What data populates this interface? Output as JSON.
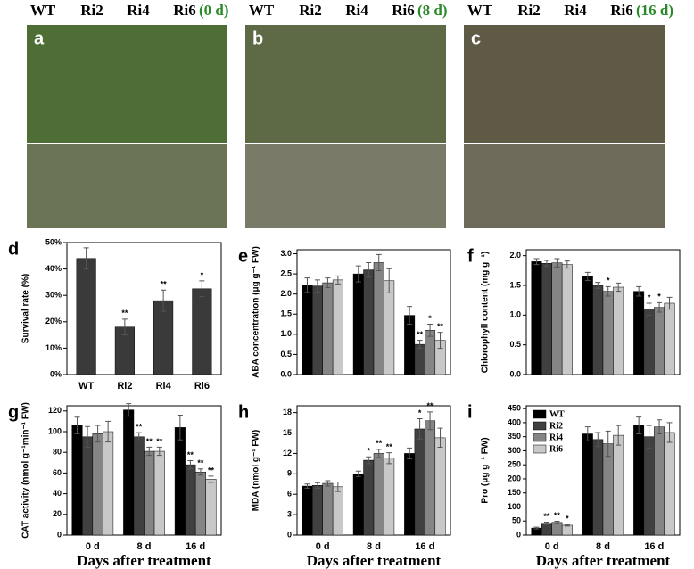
{
  "photos": [
    {
      "panel": "a",
      "headers": [
        "WT",
        "Ri2",
        "Ri4",
        "Ri6"
      ],
      "day": "(0 d)"
    },
    {
      "panel": "b",
      "headers": [
        "WT",
        "Ri2",
        "Ri4",
        "Ri6"
      ],
      "day": "(8 d)"
    },
    {
      "panel": "c",
      "headers": [
        "WT",
        "Ri2",
        "Ri4",
        "Ri6"
      ],
      "day": "(16 d)"
    }
  ],
  "chart_data": [
    {
      "type": "bar",
      "panel": "d",
      "ylabel": "Survival rate (%)",
      "categories": [
        "WT",
        "Ri2",
        "Ri4",
        "Ri6"
      ],
      "values": [
        44,
        18,
        28,
        32.5
      ],
      "errors": [
        4,
        3,
        4,
        3
      ],
      "annotations": [
        null,
        "**",
        "**",
        "*"
      ],
      "color": "#3a3a3a",
      "ylim": [
        0,
        50
      ],
      "yticks": [
        {
          "value": 0,
          "label": "0%"
        },
        {
          "value": 10,
          "label": "10%"
        },
        {
          "value": 20,
          "label": "20%"
        },
        {
          "value": 30,
          "label": "30%"
        },
        {
          "value": 40,
          "label": "40%"
        },
        {
          "value": 50,
          "label": "50%"
        }
      ]
    },
    {
      "type": "bar",
      "panel": "e",
      "ylabel": "ABA concentration (μg g⁻¹ FW)",
      "series": [
        {
          "color": "#000000",
          "values": [
            2.22,
            2.5,
            1.47
          ],
          "errors": [
            0.18,
            0.2,
            0.22
          ],
          "annotations": [
            null,
            null,
            null
          ]
        },
        {
          "color": "#404040",
          "values": [
            2.2,
            2.6,
            0.75
          ],
          "errors": [
            0.15,
            0.18,
            0.1
          ],
          "annotations": [
            null,
            null,
            "**"
          ]
        },
        {
          "color": "#858585",
          "values": [
            2.28,
            2.78,
            1.1
          ],
          "errors": [
            0.12,
            0.2,
            0.15
          ],
          "annotations": [
            null,
            null,
            "*"
          ]
        },
        {
          "color": "#c8c8c8",
          "values": [
            2.35,
            2.33,
            0.85
          ],
          "errors": [
            0.1,
            0.3,
            0.2
          ],
          "annotations": [
            null,
            null,
            "**"
          ]
        }
      ],
      "ylim": [
        0,
        3.1
      ],
      "yticks": [
        {
          "value": 0,
          "label": "0.0"
        },
        0.5,
        {
          "value": 1,
          "label": "1.0"
        },
        1.5,
        {
          "value": 2,
          "label": "2.0"
        },
        2.5,
        {
          "value": 3,
          "label": "3.0"
        }
      ]
    },
    {
      "type": "bar",
      "panel": "f",
      "ylabel": "Chlorophyll content (mg g⁻¹)",
      "series": [
        {
          "color": "#000000",
          "values": [
            1.9,
            1.65,
            1.4
          ],
          "errors": [
            0.05,
            0.07,
            0.08
          ],
          "annotations": [
            null,
            null,
            null
          ]
        },
        {
          "color": "#404040",
          "values": [
            1.87,
            1.5,
            1.1
          ],
          "errors": [
            0.05,
            0.05,
            0.1
          ],
          "annotations": [
            null,
            null,
            "*"
          ]
        },
        {
          "color": "#858585",
          "values": [
            1.88,
            1.4,
            1.13
          ],
          "errors": [
            0.07,
            0.08,
            0.08
          ],
          "annotations": [
            null,
            "*",
            "*"
          ]
        },
        {
          "color": "#c8c8c8",
          "values": [
            1.85,
            1.47,
            1.2
          ],
          "errors": [
            0.06,
            0.07,
            0.1
          ],
          "annotations": [
            null,
            null,
            null
          ]
        }
      ],
      "ylim": [
        0,
        2.1
      ],
      "yticks": [
        {
          "value": 0,
          "label": "0.0"
        },
        0.5,
        {
          "value": 1,
          "label": "1.0"
        },
        1.5,
        {
          "value": 2,
          "label": "2.0"
        }
      ]
    },
    {
      "type": "bar",
      "panel": "g",
      "ylabel": "CAT activity (nmol g⁻¹min⁻¹ FW)",
      "xlabel": "Days after treatment",
      "categories": [
        "0 d",
        "8 d",
        "16 d"
      ],
      "series": [
        {
          "color": "#000000",
          "values": [
            106,
            121,
            104
          ],
          "errors": [
            8,
            6,
            12
          ],
          "annotations": [
            null,
            null,
            null
          ]
        },
        {
          "color": "#404040",
          "values": [
            95,
            95,
            68
          ],
          "errors": [
            10,
            4,
            4
          ],
          "annotations": [
            null,
            "**",
            "**"
          ]
        },
        {
          "color": "#858585",
          "values": [
            98,
            81,
            61
          ],
          "errors": [
            8,
            4,
            3
          ],
          "annotations": [
            null,
            "**",
            "**"
          ]
        },
        {
          "color": "#c8c8c8",
          "values": [
            100,
            81,
            54
          ],
          "errors": [
            10,
            4,
            3
          ],
          "annotations": [
            null,
            "**",
            "**"
          ]
        }
      ],
      "ylim": [
        0,
        125
      ],
      "yticks": [
        0,
        20,
        40,
        60,
        80,
        100,
        120
      ]
    },
    {
      "type": "bar",
      "panel": "h",
      "ylabel": "MDA (nmol g⁻¹ FW)",
      "xlabel": "Days after treatment",
      "categories": [
        "0 d",
        "8 d",
        "16 d"
      ],
      "series": [
        {
          "color": "#000000",
          "values": [
            7.2,
            9,
            12
          ],
          "errors": [
            0.3,
            0.4,
            0.8
          ],
          "annotations": [
            null,
            null,
            null
          ]
        },
        {
          "color": "#404040",
          "values": [
            7.3,
            11,
            15.6
          ],
          "errors": [
            0.4,
            0.5,
            1.5
          ],
          "annotations": [
            null,
            "*",
            "*"
          ]
        },
        {
          "color": "#858585",
          "values": [
            7.6,
            12,
            16.8
          ],
          "errors": [
            0.4,
            0.6,
            1.3
          ],
          "annotations": [
            null,
            "**",
            "**"
          ]
        },
        {
          "color": "#c8c8c8",
          "values": [
            7.1,
            11.3,
            14.3
          ],
          "errors": [
            0.7,
            0.8,
            1.4
          ],
          "annotations": [
            null,
            "**",
            null
          ]
        }
      ],
      "ylim": [
        0,
        19
      ],
      "yticks": [
        0,
        3,
        6,
        9,
        12,
        15,
        18
      ]
    },
    {
      "type": "bar",
      "panel": "i",
      "ylabel": "Pro (μg g⁻¹ FW)",
      "xlabel": "Days after treatment",
      "legend": "upper left",
      "categories": [
        "0 d",
        "8 d",
        "16 d"
      ],
      "series": [
        {
          "name": "WT",
          "color": "#000000",
          "values": [
            25,
            360,
            390
          ],
          "errors": [
            3,
            25,
            30
          ],
          "annotations": [
            null,
            null,
            null
          ]
        },
        {
          "name": "Ri2",
          "color": "#404040",
          "values": [
            42,
            340,
            350
          ],
          "errors": [
            4,
            25,
            40
          ],
          "annotations": [
            "**",
            null,
            null
          ]
        },
        {
          "name": "Ri4",
          "color": "#858585",
          "values": [
            45,
            325,
            385
          ],
          "errors": [
            4,
            45,
            25
          ],
          "annotations": [
            "**",
            null,
            null
          ]
        },
        {
          "name": "Ri6",
          "color": "#c8c8c8",
          "values": [
            35,
            355,
            365
          ],
          "errors": [
            3,
            35,
            35
          ],
          "annotations": [
            "*",
            null,
            null
          ]
        }
      ],
      "ylim": [
        0,
        460
      ],
      "yticks": [
        0,
        50,
        100,
        150,
        200,
        250,
        300,
        350,
        400,
        450
      ]
    }
  ]
}
